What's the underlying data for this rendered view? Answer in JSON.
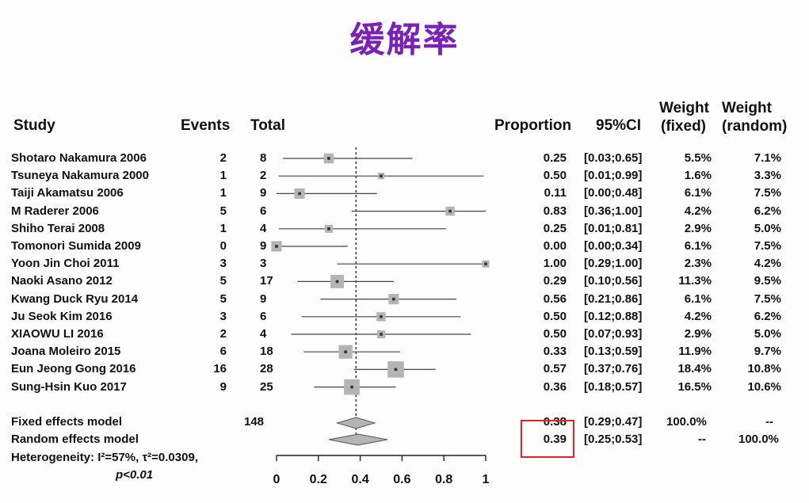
{
  "title": "缓解率",
  "title_color": "#7a22b8",
  "highlight_color": "#e0242b",
  "headers": {
    "study": "Study",
    "events": "Events",
    "total": "Total",
    "proportion": "Proportion",
    "ci": "95%CI",
    "weight_fixed_line1": "Weight",
    "weight_fixed_line2": "(fixed)",
    "weight_random_line1": "Weight",
    "weight_random_line2": "(random)"
  },
  "chart_data": {
    "type": "forest",
    "x_ticks": [
      "0",
      "0.2",
      "0.4",
      "0.6",
      "0.8",
      "1"
    ],
    "xlim": [
      0,
      1
    ],
    "reference_line": 0.38,
    "studies": [
      {
        "study": "Shotaro Nakamura 2006",
        "events": "2",
        "total": "8",
        "proportion": "0.25",
        "ci": "[0.03;0.65]",
        "w_fixed": "5.5%",
        "w_random": "7.1%",
        "p": 0.25,
        "lo": 0.03,
        "hi": 0.65,
        "w": 5.5
      },
      {
        "study": "Tsuneya Nakamura 2000",
        "events": "1",
        "total": "2",
        "proportion": "0.50",
        "ci": "[0.01;0.99]",
        "w_fixed": "1.6%",
        "w_random": "3.3%",
        "p": 0.5,
        "lo": 0.01,
        "hi": 0.99,
        "w": 1.6
      },
      {
        "study": "Taiji Akamatsu 2006",
        "events": "1",
        "total": "9",
        "proportion": "0.11",
        "ci": "[0.00;0.48]",
        "w_fixed": "6.1%",
        "w_random": "7.5%",
        "p": 0.11,
        "lo": 0.0,
        "hi": 0.48,
        "w": 6.1
      },
      {
        "study": "M Raderer 2006",
        "events": "5",
        "total": "6",
        "proportion": "0.83",
        "ci": "[0.36;1.00]",
        "w_fixed": "4.2%",
        "w_random": "6.2%",
        "p": 0.83,
        "lo": 0.36,
        "hi": 1.0,
        "w": 4.2
      },
      {
        "study": "Shiho Terai 2008",
        "events": "1",
        "total": "4",
        "proportion": "0.25",
        "ci": "[0.01;0.81]",
        "w_fixed": "2.9%",
        "w_random": "5.0%",
        "p": 0.25,
        "lo": 0.01,
        "hi": 0.81,
        "w": 2.9
      },
      {
        "study": "Tomonori Sumida 2009",
        "events": "0",
        "total": "9",
        "proportion": "0.00",
        "ci": "[0.00;0.34]",
        "w_fixed": "6.1%",
        "w_random": "7.5%",
        "p": 0.0,
        "lo": 0.0,
        "hi": 0.34,
        "w": 6.1
      },
      {
        "study": "Yoon Jin Choi 2011",
        "events": "3",
        "total": "3",
        "proportion": "1.00",
        "ci": "[0.29;1.00]",
        "w_fixed": "2.3%",
        "w_random": "4.2%",
        "p": 1.0,
        "lo": 0.29,
        "hi": 1.0,
        "w": 2.3
      },
      {
        "study": "Naoki Asano 2012",
        "events": "5",
        "total": "17",
        "proportion": "0.29",
        "ci": "[0.10;0.56]",
        "w_fixed": "11.3%",
        "w_random": "9.5%",
        "p": 0.29,
        "lo": 0.1,
        "hi": 0.56,
        "w": 11.3
      },
      {
        "study": "Kwang Duck Ryu 2014",
        "events": "5",
        "total": "9",
        "proportion": "0.56",
        "ci": "[0.21;0.86]",
        "w_fixed": "6.1%",
        "w_random": "7.5%",
        "p": 0.56,
        "lo": 0.21,
        "hi": 0.86,
        "w": 6.1
      },
      {
        "study": "Ju Seok Kim 2016",
        "events": "3",
        "total": "6",
        "proportion": "0.50",
        "ci": "[0.12;0.88]",
        "w_fixed": "4.2%",
        "w_random": "6.2%",
        "p": 0.5,
        "lo": 0.12,
        "hi": 0.88,
        "w": 4.2
      },
      {
        "study": "XIAOWU LI 2016",
        "events": "2",
        "total": "4",
        "proportion": "0.50",
        "ci": "[0.07;0.93]",
        "w_fixed": "2.9%",
        "w_random": "5.0%",
        "p": 0.5,
        "lo": 0.07,
        "hi": 0.93,
        "w": 2.9
      },
      {
        "study": "Joana Moleiro 2015",
        "events": "6",
        "total": "18",
        "proportion": "0.33",
        "ci": "[0.13;0.59]",
        "w_fixed": "11.9%",
        "w_random": "9.7%",
        "p": 0.33,
        "lo": 0.13,
        "hi": 0.59,
        "w": 11.9
      },
      {
        "study": "Eun Jeong Gong 2016",
        "events": "16",
        "total": "28",
        "proportion": "0.57",
        "ci": "[0.37;0.76]",
        "w_fixed": "18.4%",
        "w_random": "10.8%",
        "p": 0.57,
        "lo": 0.37,
        "hi": 0.76,
        "w": 18.4
      },
      {
        "study": "Sung-Hsin Kuo 2017",
        "events": "9",
        "total": "25",
        "proportion": "0.36",
        "ci": "[0.18;0.57]",
        "w_fixed": "16.5%",
        "w_random": "10.6%",
        "p": 0.36,
        "lo": 0.18,
        "hi": 0.57,
        "w": 16.5
      }
    ],
    "summary": [
      {
        "label": "Fixed effects model",
        "total": "148",
        "proportion": "0.38",
        "ci": "[0.29;0.47]",
        "w_fixed": "100.0%",
        "w_random": "--",
        "p": 0.38,
        "lo": 0.29,
        "hi": 0.47
      },
      {
        "label": "Random effects model",
        "total": "",
        "proportion": "0.39",
        "ci": "[0.25;0.53]",
        "w_fixed": "--",
        "w_random": "100.0%",
        "p": 0.39,
        "lo": 0.25,
        "hi": 0.53
      }
    ],
    "heterogeneity_line1": "Heterogeneity: I²=57%, τ²=0.0309,",
    "heterogeneity_line2": "p<0.01"
  }
}
